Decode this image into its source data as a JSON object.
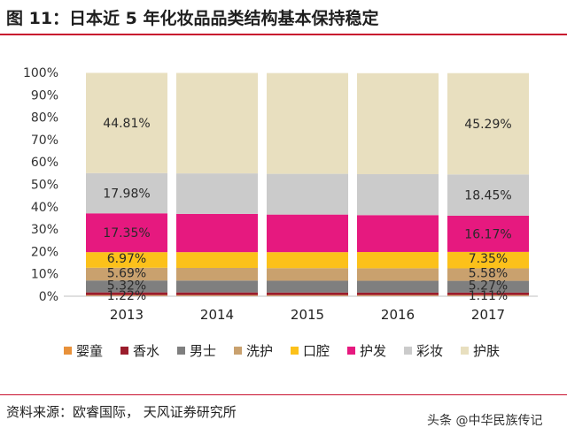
{
  "header": {
    "title": "图 11：日本近 5 年化妆品品类结构基本保持稳定"
  },
  "footer": {
    "source": "资料来源：欧睿国际，  天风证券研究所"
  },
  "watermark": {
    "text": "头条 @中华民族传记"
  },
  "colors": {
    "婴童": "#e8913a",
    "香水": "#9b1d2c",
    "男士": "#7f7f7f",
    "洗护": "#c9a16e",
    "口腔": "#fcc11a",
    "护发": "#e6197f",
    "彩妆": "#cbcbcb",
    "护肤": "#e8dfbf"
  },
  "chart_data": {
    "type": "bar",
    "stacked": true,
    "categories": [
      "2013",
      "2014",
      "2015",
      "2016",
      "2017"
    ],
    "y_ticks": [
      "0%",
      "10%",
      "20%",
      "30%",
      "40%",
      "50%",
      "60%",
      "70%",
      "80%",
      "90%",
      "100%"
    ],
    "ylim": [
      0,
      100
    ],
    "legend_position": "bottom",
    "series": [
      {
        "name": "婴童",
        "values": [
          0.5,
          0.5,
          0.5,
          0.5,
          0.5
        ]
      },
      {
        "name": "香水",
        "values": [
          1.22,
          1.2,
          1.15,
          1.12,
          1.11
        ]
      },
      {
        "name": "男士",
        "values": [
          5.32,
          5.3,
          5.28,
          5.28,
          5.27
        ]
      },
      {
        "name": "洗护",
        "values": [
          5.69,
          5.65,
          5.62,
          5.6,
          5.58
        ]
      },
      {
        "name": "口腔",
        "values": [
          6.97,
          7.05,
          7.15,
          7.25,
          7.35
        ]
      },
      {
        "name": "护发",
        "values": [
          17.35,
          17.1,
          16.8,
          16.5,
          16.17
        ]
      },
      {
        "name": "彩妆",
        "values": [
          17.98,
          18.1,
          18.2,
          18.3,
          18.45
        ]
      },
      {
        "name": "护肤",
        "values": [
          44.81,
          44.9,
          45.05,
          45.15,
          45.29
        ]
      }
    ],
    "data_labels": [
      {
        "category": "2013",
        "series": "香水",
        "text": "1.22%"
      },
      {
        "category": "2013",
        "series": "男士",
        "text": "5.32%"
      },
      {
        "category": "2013",
        "series": "洗护",
        "text": "5.69%"
      },
      {
        "category": "2013",
        "series": "口腔",
        "text": "6.97%"
      },
      {
        "category": "2013",
        "series": "护发",
        "text": "17.35%"
      },
      {
        "category": "2013",
        "series": "彩妆",
        "text": "17.98%"
      },
      {
        "category": "2013",
        "series": "护肤",
        "text": "44.81%"
      },
      {
        "category": "2017",
        "series": "香水",
        "text": "1.11%"
      },
      {
        "category": "2017",
        "series": "男士",
        "text": "5.27%"
      },
      {
        "category": "2017",
        "series": "洗护",
        "text": "5.58%"
      },
      {
        "category": "2017",
        "series": "口腔",
        "text": "7.35%"
      },
      {
        "category": "2017",
        "series": "护发",
        "text": "16.17%"
      },
      {
        "category": "2017",
        "series": "彩妆",
        "text": "18.45%"
      },
      {
        "category": "2017",
        "series": "护肤",
        "text": "45.29%"
      }
    ]
  }
}
